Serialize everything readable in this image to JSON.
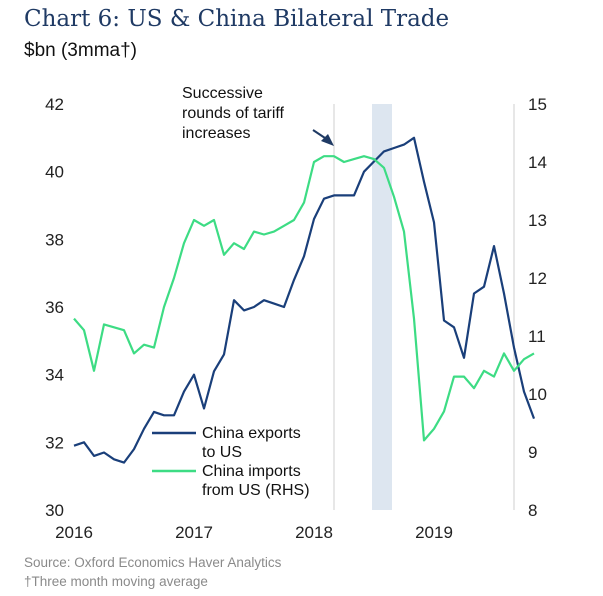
{
  "title": "Chart 6: US & China Bilateral Trade",
  "subtitle": "$bn (3mma†)",
  "source": "Source: Oxford Economics Haver Analytics",
  "footnote": "†Three month moving average",
  "colors": {
    "exports": "#1a3f7a",
    "imports": "#3ddc84",
    "shade": "#dde6f0",
    "annotation": "#1f3a64"
  },
  "chart_data": {
    "type": "line",
    "x_start": "2016-01",
    "x_ticks": [
      "2016",
      "2017",
      "2018",
      "2019"
    ],
    "y_left": {
      "range": [
        30,
        42
      ],
      "ticks": [
        30,
        32,
        34,
        36,
        38,
        40,
        42
      ]
    },
    "y_right": {
      "range": [
        8,
        15
      ],
      "ticks": [
        8,
        9,
        10,
        11,
        12,
        13,
        14,
        15
      ]
    },
    "shaded_region": [
      "2018-07",
      "2018-09"
    ],
    "vlines": [
      "2018-03",
      "2019-09"
    ],
    "annotation": {
      "lines": [
        "Successive",
        "rounds of tariff",
        "increases"
      ]
    },
    "legend": [
      {
        "lines": [
          "China exports",
          "to US"
        ],
        "series": "exports"
      },
      {
        "lines": [
          "China imports",
          "from US (RHS)"
        ],
        "series": "imports"
      }
    ],
    "series": [
      {
        "id": "exports",
        "axis": "left",
        "values": [
          31.9,
          32.0,
          31.6,
          31.7,
          31.5,
          31.4,
          31.8,
          32.4,
          32.9,
          32.8,
          32.8,
          33.5,
          34.0,
          33.0,
          34.1,
          34.6,
          36.2,
          35.9,
          36.0,
          36.2,
          36.1,
          36.0,
          36.8,
          37.5,
          38.6,
          39.2,
          39.3,
          39.3,
          39.3,
          40.0,
          40.3,
          40.6,
          40.7,
          40.8,
          41.0,
          39.7,
          38.5,
          35.6,
          35.4,
          34.5,
          36.4,
          36.6,
          37.8,
          36.4,
          34.8,
          33.5,
          32.7
        ]
      },
      {
        "id": "imports",
        "axis": "right",
        "values": [
          11.3,
          11.1,
          10.4,
          11.2,
          11.15,
          11.1,
          10.7,
          10.85,
          10.8,
          11.5,
          12.0,
          12.6,
          13.0,
          12.9,
          13.0,
          12.4,
          12.6,
          12.5,
          12.8,
          12.75,
          12.8,
          12.9,
          13.0,
          13.3,
          14.0,
          14.1,
          14.1,
          14.0,
          14.05,
          14.1,
          14.05,
          13.9,
          13.4,
          12.8,
          11.3,
          9.2,
          9.4,
          9.7,
          10.3,
          10.3,
          10.1,
          10.4,
          10.3,
          10.7,
          10.4,
          10.6,
          10.7
        ]
      }
    ]
  }
}
